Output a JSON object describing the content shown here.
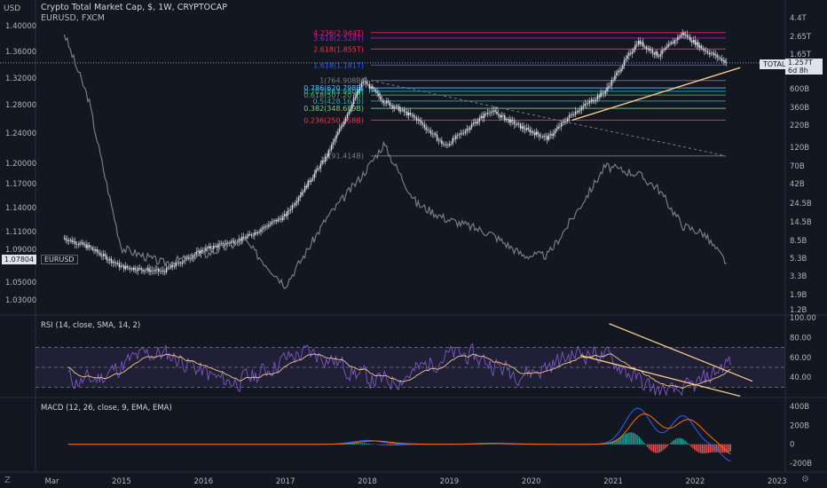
{
  "header": {
    "title": "Crypto Total Market Cap, $, 1W, CRYPTOCAP",
    "subtitle": "EURUSD, FXCM",
    "left_unit": "USD"
  },
  "colors": {
    "background": "#131722",
    "candle_up": "#e0e3eb",
    "candle_down": "#e0e3eb",
    "eurusd_line": "#787b86",
    "trendline": "#f5c78a",
    "rsi_line": "#7e57c2",
    "rsi_sma": "#f5c78a",
    "macd_line": "#2962ff",
    "signal_line": "#ff6d00",
    "hist_up": "#26a69a",
    "hist_down": "#ef5350"
  },
  "left_axis_ticks": [
    "1.40000",
    "1.36000",
    "1.32000",
    "1.28000",
    "1.24000",
    "1.20000",
    "1.17000",
    "1.14000",
    "1.11000",
    "1.09000",
    "1.05000",
    "1.03000"
  ],
  "right_axis_ticks": [
    "4.4T",
    "2.65T",
    "1.65T",
    "1T",
    "600B",
    "360B",
    "220B",
    "120B",
    "70B",
    "42B",
    "24.5B",
    "14.5B",
    "8.5B",
    "5.3B",
    "3.3B",
    "1.9B",
    "1.2B"
  ],
  "x_axis_ticks": [
    "Mar",
    "2015",
    "2016",
    "2017",
    "2018",
    "2019",
    "2020",
    "2021",
    "2022",
    "2023"
  ],
  "price_tags": {
    "eurusd": "1.07804",
    "total_name": "TOTAL",
    "total_value": "1.257T",
    "total_countdown": "6d 8h"
  },
  "fib_levels": [
    {
      "label": "4.236(2.944T)",
      "color": "#e91e63"
    },
    {
      "label": "3.618(2.528T)",
      "color": "#9c27b0"
    },
    {
      "label": "2.618(1.855T)",
      "color": "#f23645"
    },
    {
      "label": "1.618(1.181T)",
      "color": "#2962ff"
    },
    {
      "label": "1(764.908B)",
      "color": "#787b86"
    },
    {
      "label": "0.786(620.798B)",
      "color": "#64b5f6"
    },
    {
      "label": "0.702(563.990B)",
      "color": "#00bcd4"
    },
    {
      "label": "0.618(507.207B)",
      "color": "#4caf50"
    },
    {
      "label": "0.5(428.161B)",
      "color": "#26a69a"
    },
    {
      "label": "0.382(348.689B)",
      "color": "#81c784"
    },
    {
      "label": "0.236(250.358B)",
      "color": "#f23645"
    },
    {
      "label": "0(91.414B)",
      "color": "#787b86"
    }
  ],
  "rsi": {
    "title": "RSI (14, close, SMA, 14, 2)",
    "ticks": [
      "100.00",
      "80.00",
      "60.00",
      "40.00"
    ]
  },
  "macd": {
    "title": "MACD (12, 26, close, 9, EMA, EMA)",
    "ticks": [
      "400B",
      "200B",
      "0",
      "-200B"
    ]
  },
  "bottom": {
    "logo_left": "Z",
    "logo_right": "⚙"
  },
  "chart_data": {
    "type": "line",
    "title": "Crypto Total Market Cap, $, 1W, CRYPTOCAP",
    "y_scale_right": "log",
    "x": [
      2014.3,
      2014.6,
      2015.0,
      2015.5,
      2016.0,
      2016.5,
      2017.0,
      2017.5,
      2017.95,
      2018.2,
      2018.6,
      2018.95,
      2019.5,
      2019.9,
      2020.2,
      2020.5,
      2020.9,
      2021.3,
      2021.55,
      2021.85,
      2022.1,
      2022.4
    ],
    "series": [
      {
        "name": "TOTAL",
        "values": [
          9,
          7,
          4,
          3.5,
          6.5,
          9,
          17,
          90,
          760,
          430,
          260,
          120,
          330,
          200,
          150,
          300,
          560,
          2300,
          1550,
          2900,
          1850,
          1257
        ]
      },
      {
        "name": "EURUSD",
        "values": [
          1.39,
          1.3,
          1.1,
          1.08,
          1.09,
          1.11,
          1.05,
          1.14,
          1.2,
          1.24,
          1.16,
          1.14,
          1.12,
          1.09,
          1.09,
          1.14,
          1.21,
          1.2,
          1.18,
          1.13,
          1.12,
          1.078
        ]
      }
    ],
    "fib_anchor": {
      "high": "764.908B",
      "low": "91.414B"
    },
    "xlabel": "",
    "ylabel": ""
  }
}
